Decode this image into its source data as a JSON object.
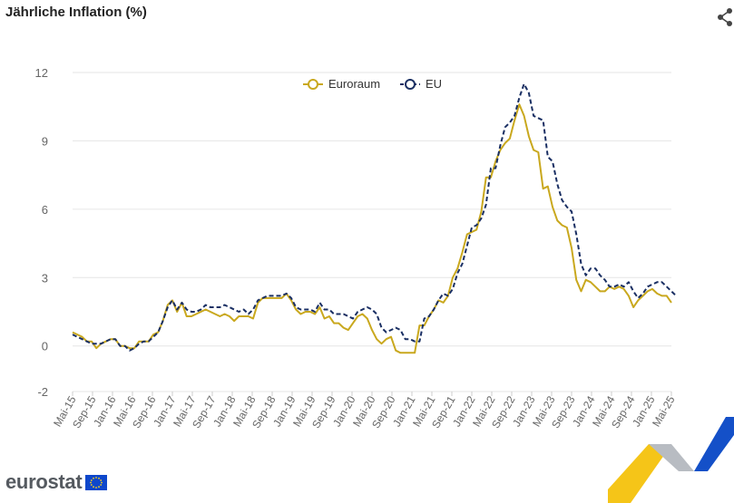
{
  "title": "Jährliche Inflation (%)",
  "icons": {
    "share": "share-icon",
    "flag": "eu-flag-icon"
  },
  "branding": {
    "logo_text": "eurostat"
  },
  "colors": {
    "euroraum": "#c9a81e",
    "eu": "#1a2f63",
    "flag_blue": "#0e47cb",
    "flag_star": "#ffd617"
  },
  "chart_data": {
    "type": "line",
    "title": "Jährliche Inflation (%)",
    "ylim": [
      -2,
      12
    ],
    "yticks": [
      -2,
      0,
      3,
      6,
      9,
      12
    ],
    "grid": true,
    "legend_position": "top-center",
    "x_start": "Mai-15",
    "x_end": "Mai-25",
    "x_tick_labels": [
      "Mai-15",
      "Sep-15",
      "Jan-16",
      "Mai-16",
      "Sep-16",
      "Jan-17",
      "Mai-17",
      "Sep-17",
      "Jan-18",
      "Mai-18",
      "Sep-18",
      "Jan-19",
      "Mai-19",
      "Sep-19",
      "Jan-20",
      "Mai-20",
      "Sep-20",
      "Jan-21",
      "Mai-21",
      "Sep-21",
      "Jan-22",
      "Mai-22",
      "Sep-22",
      "Jan-23",
      "Mai-23",
      "Sep-23",
      "Jan-24",
      "Mai-24",
      "Sep-24",
      "Jan-25",
      "Mai-25"
    ],
    "series": [
      {
        "name": "Euroraum",
        "color": "#c9a81e",
        "style": "solid",
        "values": [
          0.6,
          0.5,
          0.4,
          0.2,
          0.2,
          -0.1,
          0.1,
          0.2,
          0.3,
          0.3,
          0.0,
          0.0,
          -0.1,
          -0.1,
          0.2,
          0.2,
          0.2,
          0.5,
          0.6,
          1.1,
          1.8,
          2.0,
          1.5,
          1.9,
          1.3,
          1.3,
          1.4,
          1.5,
          1.6,
          1.5,
          1.4,
          1.3,
          1.4,
          1.3,
          1.1,
          1.3,
          1.3,
          1.3,
          1.2,
          1.9,
          2.1,
          2.1,
          2.1,
          2.1,
          2.1,
          2.3,
          2.0,
          1.6,
          1.4,
          1.5,
          1.5,
          1.4,
          1.7,
          1.2,
          1.3,
          1.0,
          1.0,
          0.8,
          0.7,
          1.0,
          1.3,
          1.4,
          1.2,
          0.7,
          0.3,
          0.1,
          0.3,
          0.4,
          -0.2,
          -0.3,
          -0.3,
          -0.3,
          -0.3,
          0.9,
          0.9,
          1.3,
          1.6,
          2.0,
          1.9,
          2.2,
          3.0,
          3.4,
          4.1,
          4.9,
          5.0,
          5.1,
          5.9,
          7.4,
          7.4,
          8.1,
          8.6,
          8.9,
          9.1,
          9.9,
          10.6,
          10.1,
          9.2,
          8.6,
          8.5,
          6.9,
          7.0,
          6.1,
          5.5,
          5.3,
          5.2,
          4.3,
          2.9,
          2.4,
          2.9,
          2.8,
          2.6,
          2.4,
          2.4,
          2.6,
          2.5,
          2.6,
          2.5,
          2.2,
          1.7,
          2.0,
          2.2,
          2.4,
          2.5,
          2.3,
          2.2,
          2.2,
          1.9
        ]
      },
      {
        "name": "EU",
        "color": "#1a2f63",
        "style": "dashed",
        "values": [
          0.5,
          0.4,
          0.3,
          0.2,
          0.1,
          0.1,
          0.1,
          0.2,
          0.3,
          0.3,
          0.0,
          0.0,
          -0.2,
          -0.1,
          0.1,
          0.2,
          0.2,
          0.4,
          0.6,
          1.1,
          1.7,
          2.0,
          1.6,
          1.9,
          1.6,
          1.5,
          1.5,
          1.6,
          1.8,
          1.7,
          1.7,
          1.7,
          1.8,
          1.7,
          1.6,
          1.5,
          1.6,
          1.4,
          1.6,
          2.0,
          2.1,
          2.2,
          2.2,
          2.2,
          2.2,
          2.3,
          2.1,
          1.7,
          1.6,
          1.6,
          1.6,
          1.5,
          1.9,
          1.6,
          1.6,
          1.4,
          1.4,
          1.4,
          1.3,
          1.2,
          1.5,
          1.6,
          1.7,
          1.6,
          1.4,
          0.8,
          0.6,
          0.7,
          0.8,
          0.7,
          0.3,
          0.3,
          0.2,
          0.2,
          1.2,
          1.3,
          1.6,
          2.0,
          2.3,
          2.2,
          2.5,
          3.2,
          3.6,
          4.4,
          5.2,
          5.3,
          5.6,
          6.2,
          7.8,
          7.8,
          8.8,
          9.6,
          9.8,
          10.1,
          10.9,
          11.5,
          11.1,
          10.1,
          10.0,
          9.9,
          8.3,
          8.1,
          7.1,
          6.4,
          6.1,
          5.9,
          4.9,
          3.6,
          3.1,
          3.4,
          3.4,
          3.1,
          2.9,
          2.6,
          2.6,
          2.7,
          2.6,
          2.8,
          2.4,
          2.1,
          2.3,
          2.6,
          2.7,
          2.8,
          2.8,
          2.6,
          2.4,
          2.2
        ]
      }
    ]
  }
}
